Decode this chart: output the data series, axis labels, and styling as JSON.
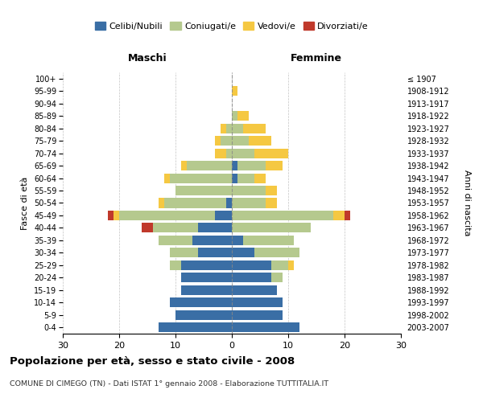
{
  "age_groups": [
    "0-4",
    "5-9",
    "10-14",
    "15-19",
    "20-24",
    "25-29",
    "30-34",
    "35-39",
    "40-44",
    "45-49",
    "50-54",
    "55-59",
    "60-64",
    "65-69",
    "70-74",
    "75-79",
    "80-84",
    "85-89",
    "90-94",
    "95-99",
    "100+"
  ],
  "birth_years": [
    "2003-2007",
    "1998-2002",
    "1993-1997",
    "1988-1992",
    "1983-1987",
    "1978-1982",
    "1973-1977",
    "1968-1972",
    "1963-1967",
    "1958-1962",
    "1953-1957",
    "1948-1952",
    "1943-1947",
    "1938-1942",
    "1933-1937",
    "1928-1932",
    "1923-1927",
    "1918-1922",
    "1913-1917",
    "1908-1912",
    "≤ 1907"
  ],
  "male": {
    "celibi": [
      13,
      10,
      11,
      9,
      9,
      9,
      6,
      7,
      6,
      3,
      1,
      0,
      0,
      0,
      0,
      0,
      0,
      0,
      0,
      0,
      0
    ],
    "coniugati": [
      0,
      0,
      0,
      0,
      0,
      2,
      5,
      6,
      8,
      17,
      11,
      10,
      11,
      8,
      1,
      2,
      1,
      0,
      0,
      0,
      0
    ],
    "vedovi": [
      0,
      0,
      0,
      0,
      0,
      0,
      0,
      0,
      0,
      1,
      1,
      0,
      1,
      1,
      2,
      1,
      1,
      0,
      0,
      0,
      0
    ],
    "divorziati": [
      0,
      0,
      0,
      0,
      0,
      0,
      0,
      0,
      2,
      1,
      0,
      0,
      0,
      0,
      0,
      0,
      0,
      0,
      0,
      0,
      0
    ]
  },
  "female": {
    "nubili": [
      12,
      9,
      9,
      8,
      7,
      7,
      4,
      2,
      0,
      0,
      0,
      0,
      1,
      1,
      0,
      0,
      0,
      0,
      0,
      0,
      0
    ],
    "coniugate": [
      0,
      0,
      0,
      0,
      2,
      3,
      8,
      9,
      14,
      18,
      6,
      6,
      3,
      5,
      4,
      3,
      2,
      1,
      0,
      0,
      0
    ],
    "vedove": [
      0,
      0,
      0,
      0,
      0,
      1,
      0,
      0,
      0,
      2,
      2,
      2,
      2,
      3,
      6,
      4,
      4,
      2,
      0,
      1,
      0
    ],
    "divorziate": [
      0,
      0,
      0,
      0,
      0,
      0,
      0,
      0,
      0,
      1,
      0,
      0,
      0,
      0,
      0,
      0,
      0,
      0,
      0,
      0,
      0
    ]
  },
  "colors": {
    "celibi": "#3a6ea5",
    "coniugati": "#b5c98e",
    "vedovi": "#f5c842",
    "divorziati": "#c0392b"
  },
  "xlim": 30,
  "title": "Popolazione per età, sesso e stato civile - 2008",
  "subtitle": "COMUNE DI CIMEGO (TN) - Dati ISTAT 1° gennaio 2008 - Elaborazione TUTTITALIA.IT",
  "ylabel_left": "Fasce di età",
  "ylabel_right": "Anni di nascita",
  "xlabel_left": "Maschi",
  "xlabel_right": "Femmine"
}
